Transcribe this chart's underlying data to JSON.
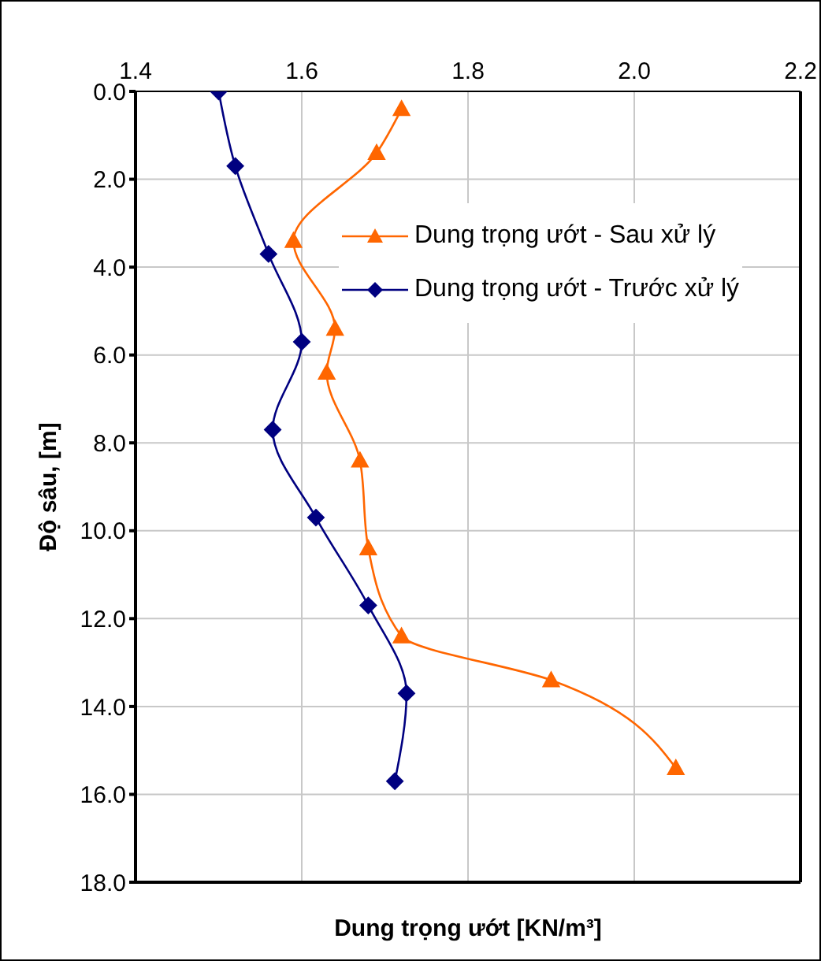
{
  "chart_data": {
    "type": "line",
    "orientation": "horizontal",
    "xlabel": "Dung trọng ướt [KN/m³]",
    "ylabel": "Độ sâu,  [m]",
    "xlim": [
      1.4,
      2.2
    ],
    "xticks": [
      1.4,
      1.6,
      1.8,
      {
        "value": 2,
        "label": "2.0"
      },
      2.2
    ],
    "ylim": [
      18,
      0
    ],
    "yticks": [
      {
        "value": 0,
        "label": "0.0"
      },
      {
        "value": 2,
        "label": "2.0"
      },
      {
        "value": 4,
        "label": "4.0"
      },
      {
        "value": 6,
        "label": "6.0"
      },
      {
        "value": 8,
        "label": "8.0"
      },
      {
        "value": 10,
        "label": "10.0"
      },
      {
        "value": 12,
        "label": "12.0"
      },
      {
        "value": 14,
        "label": "14.0"
      },
      {
        "value": 16,
        "label": "16.0"
      },
      {
        "value": 18,
        "label": "18.0"
      }
    ],
    "grid": true,
    "legend": "right",
    "line_style": "solid",
    "series": [
      {
        "name": "Dung trọng ướt - Sau xử lý",
        "color": "#ff6600",
        "marker": "triangle",
        "x": [
          0.4,
          1.4,
          3.4,
          5.4,
          6.4,
          8.4,
          10.4,
          12.4,
          13.4,
          15.4
        ],
        "values": [
          1.72,
          1.69,
          1.59,
          1.64,
          1.63,
          1.67,
          1.68,
          1.72,
          1.9,
          2.05
        ]
      },
      {
        "name": "Dung trọng ướt - Trước xử lý",
        "color": "#000080",
        "marker": "diamond",
        "x": [
          0,
          1.7,
          3.7,
          5.7,
          7.7,
          9.7,
          11.7,
          13.7,
          15.7
        ],
        "values": [
          1.5,
          1.52,
          1.56,
          1.6,
          1.565,
          1.617,
          1.68,
          1.726,
          1.712
        ]
      }
    ]
  }
}
